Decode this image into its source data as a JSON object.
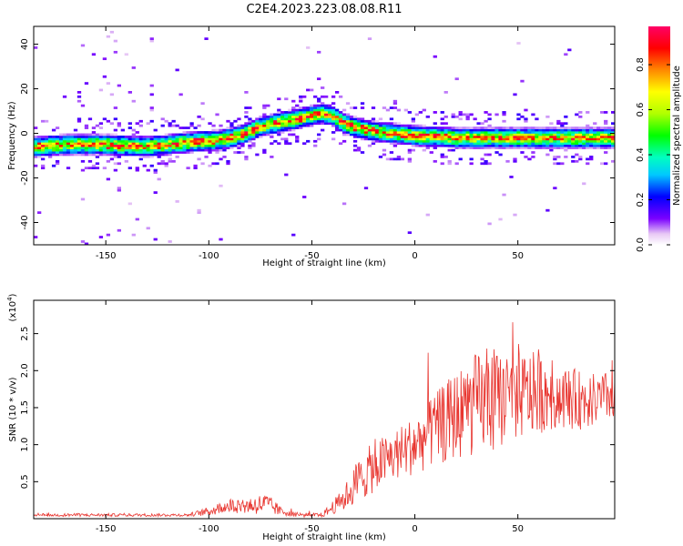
{
  "figure_title": "C2E4.2023.223.08.08.R11",
  "chart_data": [
    {
      "type": "heatmap",
      "title": "C2E4.2023.223.08.08.R11",
      "xlabel": "Height of straight line (km)",
      "ylabel": "Frequency (Hz)",
      "xlim": [
        -185,
        97
      ],
      "ylim": [
        -50,
        48
      ],
      "x_ticks": [
        -150,
        -100,
        -50,
        0,
        50
      ],
      "y_ticks": [
        -40,
        -20,
        0,
        20,
        40
      ],
      "grid": false,
      "ridge": {
        "x": [
          -185,
          -170,
          -150,
          -130,
          -110,
          -95,
          -85,
          -75,
          -65,
          -55,
          -50,
          -45,
          -40,
          -35,
          -30,
          -20,
          -10,
          0,
          20,
          40,
          60,
          80,
          97
        ],
        "frequency_hz": [
          -6,
          -5,
          -5,
          -6,
          -4,
          -3,
          -1,
          3,
          5,
          7,
          8,
          9,
          8,
          5,
          3,
          1,
          0,
          -1,
          -2,
          -2,
          -2,
          -2,
          -2
        ]
      },
      "colorbar": {
        "label": "Normalized spectral amplitude",
        "range": [
          0.0,
          0.97
        ],
        "ticks": [
          0.0,
          0.2,
          0.4,
          0.6,
          0.8
        ]
      }
    },
    {
      "type": "line",
      "xlabel": "Height of straight line (km)",
      "ylabel": "SNR (10 * v/v)",
      "y_multiplier_label": "(x10",
      "y_multiplier_exp": "4",
      "xlim": [
        -185,
        97
      ],
      "ylim": [
        0,
        2.95
      ],
      "x_ticks": [
        -150,
        -100,
        -50,
        0,
        50
      ],
      "y_ticks": [
        0.5,
        1.0,
        1.5,
        2.0,
        2.5
      ],
      "y_unit_scale": 10000,
      "grid": false,
      "series_color": "#e8352f",
      "envelope": {
        "x": [
          -185,
          -110,
          -100,
          -90,
          -80,
          -72,
          -65,
          -55,
          -45,
          -35,
          -28,
          -20,
          -10,
          0,
          10,
          20,
          30,
          40,
          50,
          60,
          70,
          80,
          90,
          97
        ],
        "mean": [
          0.05,
          0.05,
          0.1,
          0.18,
          0.18,
          0.2,
          0.1,
          0.05,
          0.05,
          0.25,
          0.5,
          0.7,
          0.85,
          1.0,
          1.2,
          1.4,
          1.55,
          1.6,
          1.65,
          1.7,
          1.65,
          1.6,
          1.6,
          1.7
        ],
        "spread": [
          0.02,
          0.02,
          0.06,
          0.1,
          0.12,
          0.15,
          0.06,
          0.03,
          0.03,
          0.15,
          0.3,
          0.35,
          0.35,
          0.4,
          0.5,
          0.6,
          0.7,
          0.65,
          0.6,
          0.55,
          0.45,
          0.4,
          0.35,
          0.35
        ]
      }
    }
  ]
}
